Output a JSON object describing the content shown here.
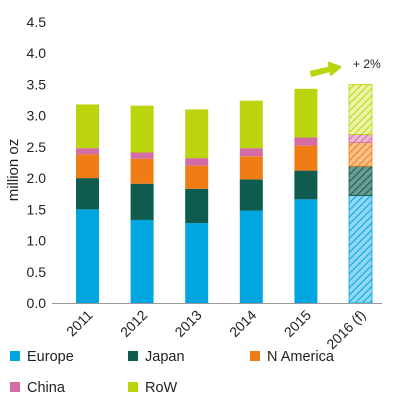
{
  "chart_data": {
    "type": "bar",
    "stacked": true,
    "ylabel": "million oz",
    "ylim": [
      0,
      4.5
    ],
    "yticks": [
      "0.0",
      "0.5",
      "1.0",
      "1.5",
      "2.0",
      "2.5",
      "3.0",
      "3.5",
      "4.0",
      "4.5"
    ],
    "categories": [
      "2011",
      "2012",
      "2013",
      "2014",
      "2015",
      "2016 (f)"
    ],
    "forecast_category": "2016 (f)",
    "series": [
      {
        "name": "Europe",
        "color": "#00a6df",
        "values": [
          1.5,
          1.33,
          1.28,
          1.48,
          1.66,
          1.72
        ]
      },
      {
        "name": "Japan",
        "color": "#0e5c50",
        "values": [
          0.5,
          0.58,
          0.55,
          0.5,
          0.46,
          0.47
        ]
      },
      {
        "name": "N America",
        "color": "#f07d14",
        "values": [
          0.38,
          0.4,
          0.37,
          0.37,
          0.4,
          0.38
        ]
      },
      {
        "name": "China",
        "color": "#d36ba5",
        "values": [
          0.1,
          0.1,
          0.12,
          0.13,
          0.13,
          0.13
        ]
      },
      {
        "name": "RoW",
        "color": "#bbd40e",
        "values": [
          0.7,
          0.75,
          0.78,
          0.76,
          0.78,
          0.8
        ]
      }
    ],
    "annotation": {
      "text": "+ 2%",
      "arrow_color": "#bbd40e"
    },
    "legend_position": "bottom",
    "grid": false
  }
}
